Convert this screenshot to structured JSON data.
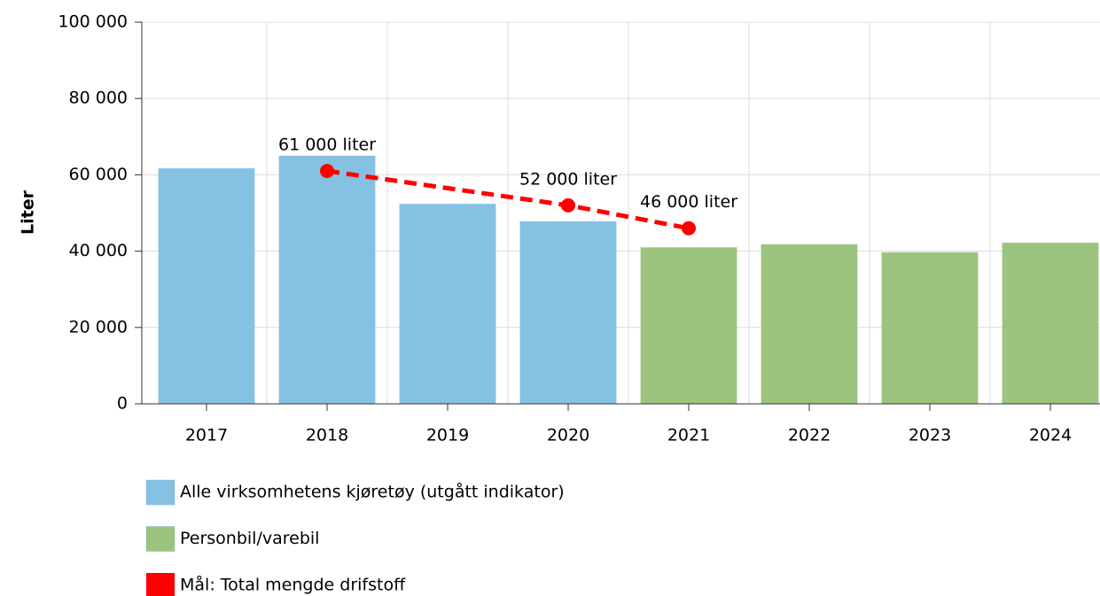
{
  "chart_data": {
    "type": "bar",
    "y_label": "Liter",
    "categories": [
      "2017",
      "2018",
      "2019",
      "2020",
      "2021",
      "2022",
      "2023",
      "2024"
    ],
    "series": [
      {
        "name": "Alle virksomhetens kjøretøy (utgått indikator)",
        "color": "#85c1e2",
        "values": [
          61700,
          65000,
          52400,
          47800,
          null,
          null,
          null,
          null
        ]
      },
      {
        "name": "Personbil/varebil",
        "color": "#9dc47e",
        "values": [
          null,
          null,
          null,
          null,
          41000,
          41800,
          39700,
          42200
        ]
      },
      {
        "name": "Mål: Total mengde drifstoff",
        "type": "line",
        "color": "#ff0000",
        "x": [
          "2018",
          "2020",
          "2021"
        ],
        "values": [
          61000,
          52000,
          46000
        ],
        "value_labels": [
          "61 000 liter",
          "52 000 liter",
          "46 000 liter"
        ]
      }
    ],
    "ylim": [
      0,
      100000
    ],
    "yticks": [
      0,
      {
        "value": 20000,
        "label": "20 000"
      },
      {
        "value": 40000,
        "label": "40 000"
      },
      {
        "value": 60000,
        "label": "60 000"
      },
      {
        "value": 80000,
        "label": "80 000"
      },
      {
        "value": 100000,
        "label": "100 000"
      }
    ],
    "grid": true
  }
}
